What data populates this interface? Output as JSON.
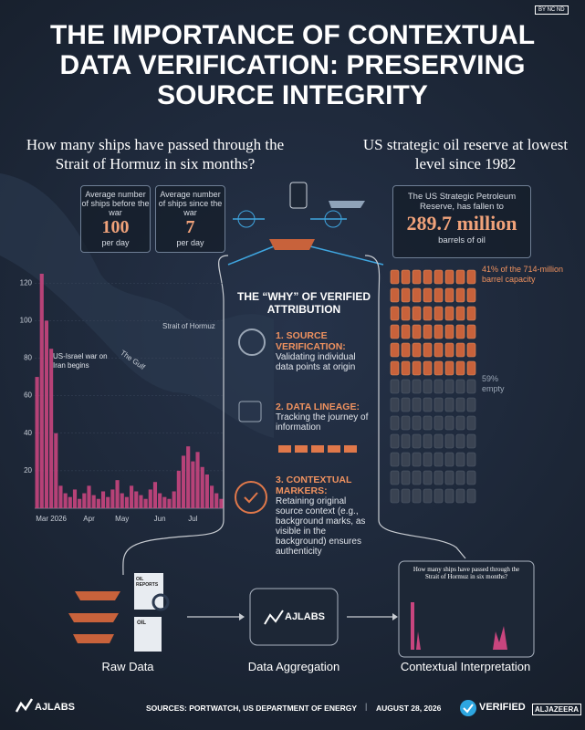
{
  "header": {
    "title": "THE IMPORTANCE OF CONTEXTUAL DATA VERIFICATION: PRESERVING SOURCE INTEGRITY",
    "badge": "BY NC ND"
  },
  "ships": {
    "question": "How many ships have passed through the Strait of Hormuz in six months?",
    "before": {
      "label": "Average number of ships before the war",
      "value": 100,
      "unit": "per day"
    },
    "since": {
      "label": "Average number of ships since the war",
      "value": 7,
      "unit": "per day"
    },
    "map_labels": [
      "Strait of Hormuz",
      "The Gulf"
    ],
    "annotation": "US-Israel war on Iran begins"
  },
  "chart_data": {
    "type": "bar",
    "color": "#c8457e",
    "categories": [
      null,
      null,
      null,
      "Mar 2026",
      null,
      null,
      null,
      null,
      null,
      null,
      null,
      "Apr",
      null,
      null,
      null,
      null,
      null,
      null,
      "May",
      null,
      null,
      null,
      null,
      null,
      null,
      null,
      "Jun",
      null,
      null,
      null,
      null,
      null,
      null,
      "Jul",
      null,
      null,
      null,
      null,
      null,
      null
    ],
    "values": [
      70,
      125,
      100,
      85,
      40,
      12,
      8,
      6,
      10,
      5,
      8,
      12,
      7,
      5,
      9,
      6,
      10,
      15,
      8,
      6,
      12,
      9,
      7,
      5,
      10,
      14,
      8,
      6,
      5,
      9,
      20,
      28,
      33,
      25,
      30,
      22,
      18,
      12,
      8,
      5
    ],
    "ylim": [
      0,
      125
    ],
    "yticks": [
      20,
      40,
      60,
      80,
      100,
      120
    ]
  },
  "oil": {
    "heading": "US strategic oil reserve at lowest level since 1982",
    "stat_label": "The US Strategic Petroleum Reserve, has fallen to",
    "stat_value": "289.7 million",
    "stat_unit": "barrels of oil",
    "filled_label": "41% of the 714-million barrel capacity",
    "empty_label": "59% empty"
  },
  "why": {
    "title": "THE “WHY” OF VERIFIED ATTRIBUTION",
    "items": [
      {
        "heading": "1. SOURCE VERIFICATION:",
        "text": "Validating individual data points at origin"
      },
      {
        "heading": "2. DATA LINEAGE:",
        "text": "Tracking the journey of information"
      },
      {
        "heading": "3. CONTEXTUAL MARKERS:",
        "text": "Retaining original source context (e.g., background marks, as visible in the background) ensures authenticity"
      }
    ]
  },
  "pipeline": {
    "steps": [
      "Raw Data",
      "Data Aggregation",
      "Contextual Interpretation"
    ],
    "logo": "AJLABS",
    "doc_labels": [
      "OIL REPORTS",
      "OIL"
    ],
    "thumbnail_title": "How many ships have passed through the Strait of Hormuz in six months?"
  },
  "footer": {
    "logo": "AJLABS",
    "sources": "SOURCES: PORTWATCH, US DEPARTMENT OF ENERGY",
    "date": "AUGUST 28, 2026",
    "verified": "VERIFIED",
    "brand": "ALJAZEERA"
  }
}
